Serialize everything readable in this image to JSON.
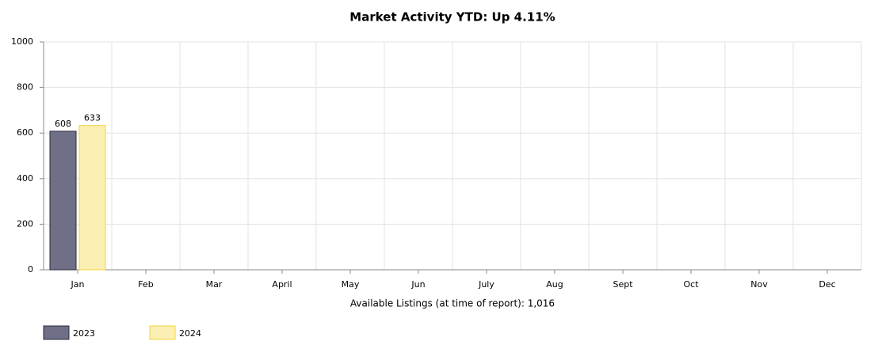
{
  "chart_data": {
    "type": "bar",
    "title": "Market Activity YTD: Up 4.11%",
    "xlabel": "Available Listings (at time of report): 1,016",
    "categories": [
      "Jan",
      "Feb",
      "Mar",
      "April",
      "May",
      "Jun",
      "July",
      "Aug",
      "Sept",
      "Oct",
      "Nov",
      "Dec"
    ],
    "series": [
      {
        "name": "2023",
        "color": "#6f7087",
        "values": [
          608,
          null,
          null,
          null,
          null,
          null,
          null,
          null,
          null,
          null,
          null,
          null
        ]
      },
      {
        "name": "2024",
        "color": "#fcefb4",
        "values": [
          633,
          null,
          null,
          null,
          null,
          null,
          null,
          null,
          null,
          null,
          null,
          null
        ]
      }
    ],
    "ylim": [
      0,
      1000
    ],
    "yticks": [
      0,
      200,
      400,
      600,
      800,
      1000
    ],
    "grid": true,
    "legend": "bottom-left"
  }
}
